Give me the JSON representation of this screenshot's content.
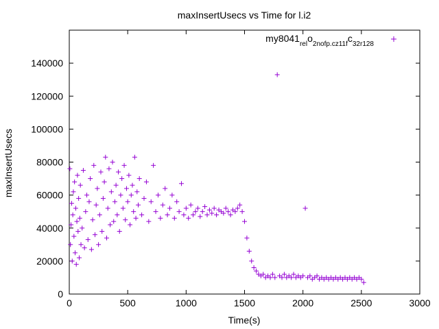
{
  "chart_data": {
    "type": "scatter",
    "title": "maxInsertUsecs vs Time for l.i2",
    "xlabel": "Time(s)",
    "ylabel": "maxInsertUsecs",
    "xlim": [
      0,
      3000
    ],
    "ylim": [
      0,
      160000
    ],
    "x_ticks": [
      0,
      500,
      1000,
      1500,
      2000,
      2500,
      3000
    ],
    "y_ticks": [
      0,
      20000,
      40000,
      60000,
      80000,
      100000,
      120000,
      140000
    ],
    "x_tick_labels": [
      "0",
      "500",
      "1000",
      "1500",
      "2000",
      "2500",
      "3000"
    ],
    "y_tick_labels": [
      "0",
      "20000",
      "40000",
      "60000",
      "80000",
      "100000",
      "120000",
      "140000"
    ],
    "grid": false,
    "legend_position": "top-right",
    "series": [
      {
        "name_parts": [
          "my8041",
          "rel",
          "o",
          "2nofp.cz11f",
          "c",
          "32r128"
        ],
        "marker": "plus",
        "color": "#9400d3",
        "points": [
          [
            5,
            76000
          ],
          [
            10,
            30000
          ],
          [
            15,
            42000
          ],
          [
            20,
            55000
          ],
          [
            25,
            20000
          ],
          [
            30,
            48000
          ],
          [
            35,
            62000
          ],
          [
            40,
            35000
          ],
          [
            45,
            68000
          ],
          [
            50,
            25000
          ],
          [
            55,
            52000
          ],
          [
            60,
            18000
          ],
          [
            65,
            44000
          ],
          [
            70,
            72000
          ],
          [
            75,
            38000
          ],
          [
            80,
            58000
          ],
          [
            85,
            22000
          ],
          [
            90,
            46000
          ],
          [
            95,
            66000
          ],
          [
            100,
            30000
          ],
          [
            110,
            40000
          ],
          [
            120,
            75000
          ],
          [
            130,
            28000
          ],
          [
            140,
            50000
          ],
          [
            150,
            60000
          ],
          [
            160,
            33000
          ],
          [
            170,
            56000
          ],
          [
            180,
            70000
          ],
          [
            190,
            27000
          ],
          [
            200,
            45000
          ],
          [
            210,
            78000
          ],
          [
            220,
            36000
          ],
          [
            230,
            54000
          ],
          [
            240,
            64000
          ],
          [
            250,
            30000
          ],
          [
            260,
            48000
          ],
          [
            270,
            74000
          ],
          [
            280,
            38000
          ],
          [
            290,
            58000
          ],
          [
            300,
            68000
          ],
          [
            310,
            83000
          ],
          [
            320,
            34000
          ],
          [
            330,
            52000
          ],
          [
            340,
            76000
          ],
          [
            350,
            42000
          ],
          [
            360,
            62000
          ],
          [
            370,
            80000
          ],
          [
            380,
            44000
          ],
          [
            390,
            56000
          ],
          [
            400,
            66000
          ],
          [
            410,
            48000
          ],
          [
            420,
            74000
          ],
          [
            430,
            38000
          ],
          [
            440,
            60000
          ],
          [
            450,
            70000
          ],
          [
            460,
            52000
          ],
          [
            470,
            78000
          ],
          [
            480,
            45000
          ],
          [
            490,
            64000
          ],
          [
            500,
            56000
          ],
          [
            510,
            72000
          ],
          [
            520,
            42000
          ],
          [
            530,
            60000
          ],
          [
            540,
            66000
          ],
          [
            550,
            50000
          ],
          [
            560,
            83000
          ],
          [
            570,
            46000
          ],
          [
            580,
            62000
          ],
          [
            590,
            54000
          ],
          [
            600,
            70000
          ],
          [
            620,
            48000
          ],
          [
            640,
            58000
          ],
          [
            660,
            68000
          ],
          [
            680,
            44000
          ],
          [
            700,
            56000
          ],
          [
            720,
            78000
          ],
          [
            740,
            50000
          ],
          [
            760,
            60000
          ],
          [
            780,
            46000
          ],
          [
            800,
            54000
          ],
          [
            820,
            64000
          ],
          [
            840,
            48000
          ],
          [
            860,
            52000
          ],
          [
            880,
            60000
          ],
          [
            900,
            46000
          ],
          [
            920,
            56000
          ],
          [
            940,
            50000
          ],
          [
            960,
            67000
          ],
          [
            980,
            48000
          ],
          [
            1000,
            52000
          ],
          [
            1020,
            46000
          ],
          [
            1040,
            54000
          ],
          [
            1060,
            48000
          ],
          [
            1080,
            50000
          ],
          [
            1100,
            52000
          ],
          [
            1120,
            47000
          ],
          [
            1140,
            50000
          ],
          [
            1160,
            53000
          ],
          [
            1180,
            48000
          ],
          [
            1200,
            51000
          ],
          [
            1220,
            49000
          ],
          [
            1240,
            52000
          ],
          [
            1260,
            48000
          ],
          [
            1280,
            51000
          ],
          [
            1300,
            50000
          ],
          [
            1320,
            49000
          ],
          [
            1340,
            52000
          ],
          [
            1360,
            50000
          ],
          [
            1380,
            48000
          ],
          [
            1400,
            51000
          ],
          [
            1420,
            50000
          ],
          [
            1440,
            52000
          ],
          [
            1460,
            54000
          ],
          [
            1480,
            50000
          ],
          [
            1500,
            44000
          ],
          [
            1520,
            34000
          ],
          [
            1540,
            26000
          ],
          [
            1560,
            20000
          ],
          [
            1580,
            16000
          ],
          [
            1600,
            14000
          ],
          [
            1620,
            12000
          ],
          [
            1640,
            11000
          ],
          [
            1660,
            12000
          ],
          [
            1680,
            10000
          ],
          [
            1700,
            11000
          ],
          [
            1720,
            10000
          ],
          [
            1740,
            12000
          ],
          [
            1760,
            10000
          ],
          [
            1780,
            133000
          ],
          [
            1800,
            11000
          ],
          [
            1820,
            10000
          ],
          [
            1840,
            12000
          ],
          [
            1860,
            10000
          ],
          [
            1880,
            11000
          ],
          [
            1900,
            10000
          ],
          [
            1920,
            12000
          ],
          [
            1940,
            10000
          ],
          [
            1960,
            11000
          ],
          [
            1980,
            10000
          ],
          [
            2000,
            11000
          ],
          [
            2020,
            52000
          ],
          [
            2040,
            10000
          ],
          [
            2060,
            11000
          ],
          [
            2080,
            9000
          ],
          [
            2100,
            10000
          ],
          [
            2120,
            11000
          ],
          [
            2140,
            9000
          ],
          [
            2160,
            10000
          ],
          [
            2180,
            9000
          ],
          [
            2200,
            10000
          ],
          [
            2220,
            9000
          ],
          [
            2240,
            10000
          ],
          [
            2260,
            9000
          ],
          [
            2280,
            10000
          ],
          [
            2300,
            9000
          ],
          [
            2320,
            10000
          ],
          [
            2340,
            9000
          ],
          [
            2360,
            10000
          ],
          [
            2380,
            9000
          ],
          [
            2400,
            10000
          ],
          [
            2420,
            9000
          ],
          [
            2440,
            10000
          ],
          [
            2460,
            9000
          ],
          [
            2480,
            10000
          ],
          [
            2500,
            9000
          ],
          [
            2520,
            7000
          ]
        ]
      }
    ]
  }
}
